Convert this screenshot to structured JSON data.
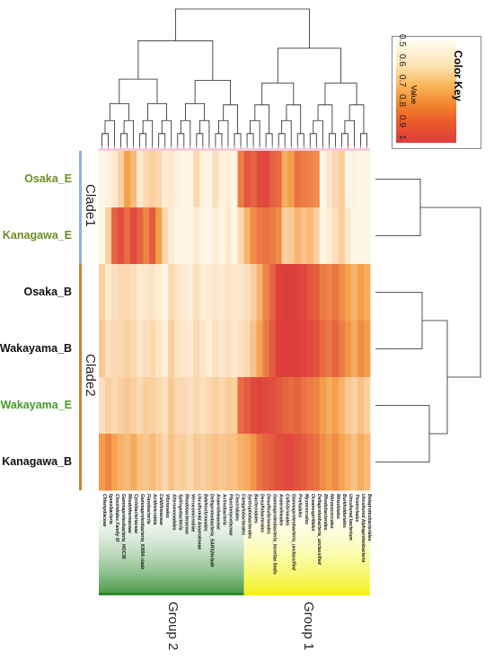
{
  "chart_data": {
    "type": "heatmap",
    "rows": [
      {
        "name": "Osaka_E",
        "color": "#6b8e23"
      },
      {
        "name": "Kanagawa_E",
        "color": "#6b8e23"
      },
      {
        "name": "Osaka_B",
        "color": "#111111"
      },
      {
        "name": "Wakayama_B",
        "color": "#111111"
      },
      {
        "name": "Wakayama_E",
        "color": "#4a9a2a"
      },
      {
        "name": "Kanagawa_B",
        "color": "#111111"
      }
    ],
    "columns": [
      "Chlamydiaceae",
      "Ignavibacteria",
      "Clostridiales Family XI",
      "Gammaproteobacteria_HOC36",
      "Rhodothermaceae",
      "Cyclobacteriaceae",
      "Gammaproteobacteria_KI89A clade",
      "Flavobacteriia",
      "Acidimicrobiia",
      "Caldilineaceae",
      "Vibrionales",
      "Alteromonadales",
      "Sphingobacteriia",
      "Rhodobacteraceae",
      "Verrucomicrobiae",
      "Unculturedd Anaerolineae",
      "Bdellovibrionales",
      "Deltaproteobacteria_SAR324clade",
      "Anaerolineaceae",
      "Actinobacteria",
      "Planctomycetaceae",
      "Clostridiales",
      "Campylobacterales",
      "Syntrophobacterales",
      "Bacteroidales",
      "Desulfobacterales",
      "Desulfovibrionales",
      "Gammaproteobacteria_Incertae Sedis",
      "Anaerolineales",
      "Cellvibrionales",
      "Gammaproteobacteria_unclassified",
      "Pirellulales",
      "Myxococcales",
      "Oceanospirillales",
      "Deltaproteobacteria_unclassified",
      "Rhodobacterales",
      "Nitrosococcales",
      "Rhizobiales",
      "Burkholderiales",
      "Uncultured bacterium",
      "Thiotrichales",
      "Uncultured Alphaproteobacteria",
      "Betaproteobacteriales"
    ],
    "values": [
      [
        0.52,
        0.53,
        0.55,
        0.62,
        0.75,
        0.68,
        0.55,
        0.6,
        0.62,
        0.6,
        0.54,
        0.56,
        0.53,
        0.52,
        0.52,
        0.6,
        0.53,
        0.52,
        0.58,
        0.53,
        0.54,
        0.52,
        0.83,
        0.93,
        0.9,
        0.96,
        0.97,
        0.91,
        0.88,
        0.72,
        0.76,
        0.86,
        0.84,
        0.82,
        0.8,
        0.52,
        0.56,
        0.6,
        0.63,
        0.52,
        0.53,
        0.52,
        0.52
      ],
      [
        0.52,
        0.62,
        0.9,
        0.95,
        0.88,
        0.96,
        0.9,
        0.82,
        0.92,
        0.76,
        0.6,
        0.55,
        0.52,
        0.52,
        0.52,
        0.55,
        0.52,
        0.52,
        0.54,
        0.52,
        0.55,
        0.52,
        0.6,
        0.7,
        0.8,
        0.85,
        0.86,
        0.84,
        0.8,
        0.62,
        0.64,
        0.7,
        0.66,
        0.68,
        0.62,
        0.52,
        0.54,
        0.58,
        0.62,
        0.55,
        0.52,
        0.52,
        0.52
      ],
      [
        0.62,
        0.56,
        0.58,
        0.6,
        0.6,
        0.58,
        0.55,
        0.56,
        0.57,
        0.54,
        0.52,
        0.6,
        0.56,
        0.55,
        0.54,
        0.58,
        0.54,
        0.55,
        0.56,
        0.55,
        0.57,
        0.56,
        0.56,
        0.58,
        0.62,
        0.7,
        0.82,
        0.9,
        0.98,
        0.99,
        0.99,
        0.98,
        0.97,
        0.93,
        0.92,
        0.84,
        0.82,
        0.86,
        0.8,
        0.74,
        0.7,
        0.76,
        0.72
      ],
      [
        0.64,
        0.58,
        0.6,
        0.6,
        0.62,
        0.6,
        0.56,
        0.58,
        0.6,
        0.56,
        0.54,
        0.62,
        0.57,
        0.56,
        0.55,
        0.6,
        0.56,
        0.54,
        0.58,
        0.56,
        0.58,
        0.55,
        0.58,
        0.6,
        0.66,
        0.74,
        0.84,
        0.92,
        0.99,
        0.99,
        0.99,
        0.99,
        0.98,
        0.96,
        0.94,
        0.88,
        0.85,
        0.9,
        0.84,
        0.78,
        0.72,
        0.8,
        0.76
      ],
      [
        0.58,
        0.62,
        0.6,
        0.62,
        0.64,
        0.62,
        0.6,
        0.63,
        0.62,
        0.6,
        0.58,
        0.64,
        0.6,
        0.6,
        0.58,
        0.6,
        0.58,
        0.6,
        0.62,
        0.6,
        0.63,
        0.62,
        0.88,
        0.92,
        0.96,
        0.98,
        0.96,
        0.95,
        0.93,
        0.9,
        0.88,
        0.9,
        0.86,
        0.84,
        0.82,
        0.76,
        0.72,
        0.75,
        0.7,
        0.64,
        0.62,
        0.66,
        0.62
      ],
      [
        0.76,
        0.82,
        0.74,
        0.7,
        0.68,
        0.72,
        0.66,
        0.65,
        0.68,
        0.64,
        0.6,
        0.66,
        0.62,
        0.63,
        0.6,
        0.64,
        0.62,
        0.64,
        0.66,
        0.64,
        0.66,
        0.66,
        0.7,
        0.72,
        0.78,
        0.86,
        0.9,
        0.92,
        0.95,
        0.96,
        0.96,
        0.94,
        0.92,
        0.88,
        0.86,
        0.8,
        0.76,
        0.8,
        0.74,
        0.7,
        0.66,
        0.72,
        0.68
      ]
    ],
    "clades": [
      {
        "name": "Clade1",
        "rows": [
          0,
          1
        ],
        "color": "#8fb1e3"
      },
      {
        "name": "Clade2",
        "rows": [
          2,
          5
        ],
        "color": "#c8862e"
      }
    ],
    "groups": [
      {
        "name": "Group 2",
        "from": 0,
        "to": 22,
        "color": "#2e8b2e"
      },
      {
        "name": "Group 1",
        "from": 23,
        "to": 42,
        "color": "#f2f200"
      }
    ],
    "color_key": {
      "title": "Color Key",
      "label": "Value",
      "ticks": [
        "0.5",
        "0.6",
        "0.7",
        "0.8",
        "0.9",
        "1"
      ],
      "range": [
        0.5,
        1
      ],
      "low_color": "#fffdf2",
      "mid_color": "#f5a04a",
      "high_color": "#dc3a3a"
    }
  }
}
